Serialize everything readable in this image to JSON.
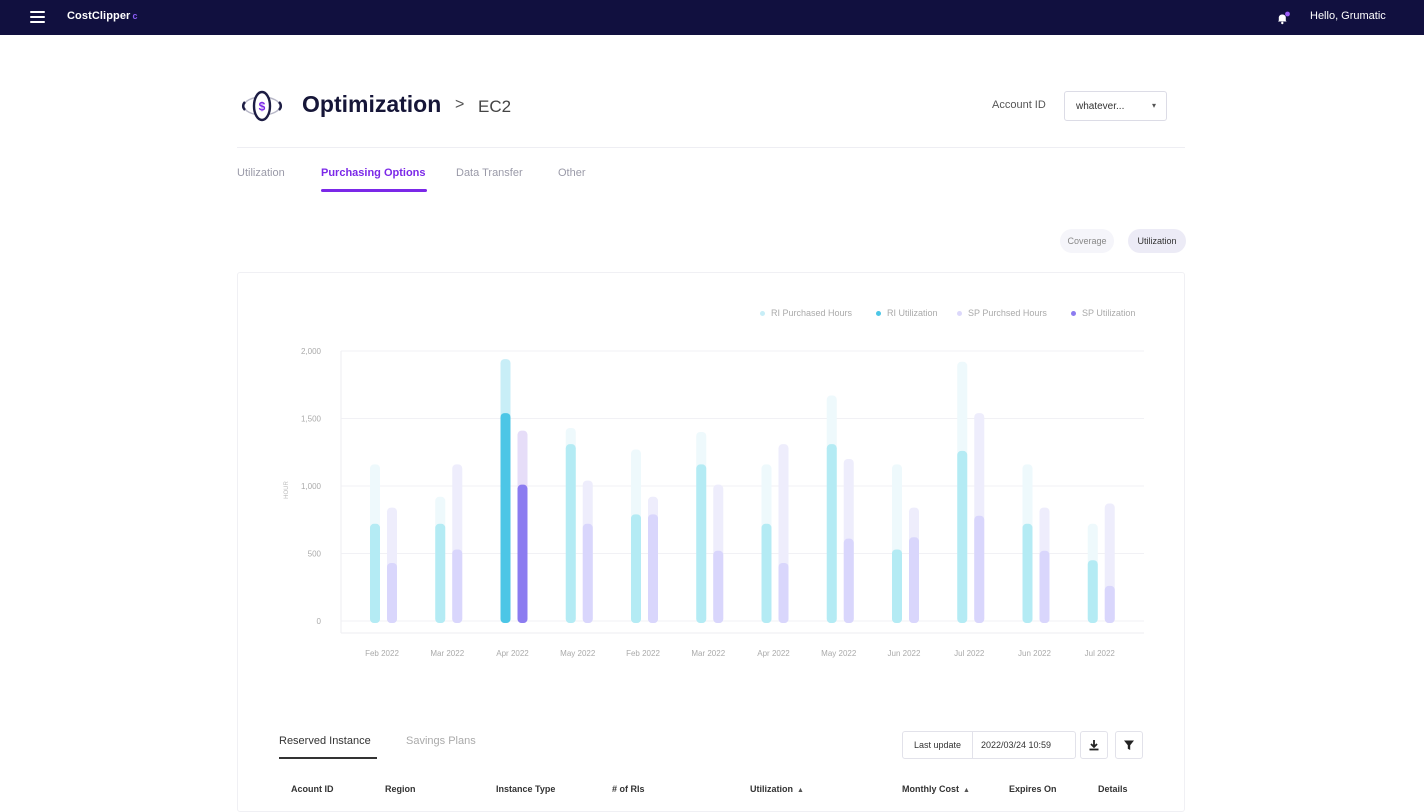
{
  "topbar": {
    "brand": "CostClipper",
    "brand_mark": "c",
    "greeting": "Hello, Grumatic"
  },
  "header": {
    "title": "Optimization",
    "breadcrumb_sep": ">",
    "breadcrumb": "EC2",
    "account_label": "Account ID",
    "account_value": "whatever..."
  },
  "tabs": [
    {
      "label": "Utilization"
    },
    {
      "label": "Purchasing Options"
    },
    {
      "label": "Data Transfer"
    },
    {
      "label": "Other"
    }
  ],
  "active_tab": "Purchasing Options",
  "toggle": {
    "coverage": "Coverage",
    "utilization": "Utilization",
    "selected": "Utilization"
  },
  "colors": {
    "accent": "#7b28e8",
    "topbar": "#11103f",
    "ri_purchased": "#d3f1f8",
    "ri_utilization": "#b4ebf4",
    "sp_purchased": "#eeedfc",
    "sp_utilization": "#d9d6fc",
    "ri_util_highlight": "#4cc6e6",
    "sp_util_highlight": "#8c7cf0"
  },
  "chart_data": {
    "type": "bar",
    "categories": [
      "Feb 2022",
      "Mar 2022",
      "Apr 2022",
      "May 2022",
      "Feb 2022",
      "Mar 2022",
      "Apr 2022",
      "May 2022",
      "Jun 2022",
      "Jul 2022",
      "Jun 2022",
      "Jul 2022"
    ],
    "series": [
      {
        "name": "RI Purchased Hours",
        "values": [
          1160,
          920,
          1940,
          1430,
          1270,
          1400,
          1160,
          1670,
          1160,
          1920,
          1160,
          720
        ]
      },
      {
        "name": "RI Utilization",
        "values": [
          720,
          720,
          1540,
          1310,
          790,
          1160,
          720,
          1310,
          530,
          1260,
          720,
          450
        ]
      },
      {
        "name": "SP Purchsed Hours",
        "values": [
          840,
          1160,
          1410,
          1040,
          920,
          1010,
          1310,
          1200,
          840,
          1540,
          840,
          870
        ]
      },
      {
        "name": "SP Utilization",
        "values": [
          430,
          530,
          1010,
          720,
          790,
          520,
          430,
          610,
          620,
          780,
          520,
          260
        ]
      }
    ],
    "highlight_index": 2,
    "ylabel": "HOUR",
    "ylim": [
      0,
      2000
    ],
    "yticks": [
      "0",
      "500",
      "1,000",
      "1,500",
      "2,000"
    ],
    "grid": true,
    "legend_position": "top-right"
  },
  "table": {
    "tabs": [
      "Reserved Instance",
      "Savings Plans"
    ],
    "active_tab": "Reserved Instance",
    "last_update_label": "Last update",
    "last_update_value": "2022/03/24  10:59",
    "columns": [
      "Acount ID",
      "Region",
      "Instance Type",
      "# of RIs",
      "Utilization",
      "Monthly Cost",
      "Expires On",
      "Details"
    ]
  }
}
